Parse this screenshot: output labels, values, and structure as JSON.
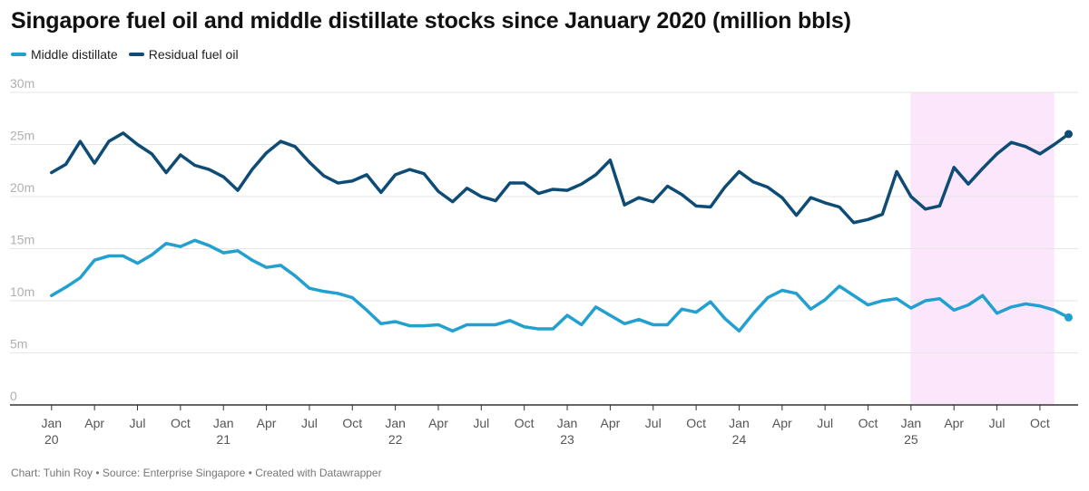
{
  "chart_data": {
    "type": "line",
    "title": "Singapore fuel oil and middle distillate stocks since January 2020 (million bbls)",
    "footer": "Chart: Tuhin Roy • Source: Enterprise Singapore • Created with Datawrapper",
    "ylim": [
      0,
      30
    ],
    "yticks": [
      {
        "value": 0,
        "label": "0"
      },
      {
        "value": 5,
        "label": "5m"
      },
      {
        "value": 10,
        "label": "10m"
      },
      {
        "value": 15,
        "label": "15m"
      },
      {
        "value": 20,
        "label": "20m"
      },
      {
        "value": 25,
        "label": "25m"
      },
      {
        "value": 30,
        "label": "30m"
      }
    ],
    "xticks": [
      {
        "index": 0,
        "label": "Jan",
        "year": "20"
      },
      {
        "index": 3,
        "label": "Apr"
      },
      {
        "index": 6,
        "label": "Jul"
      },
      {
        "index": 9,
        "label": "Oct"
      },
      {
        "index": 12,
        "label": "Jan",
        "year": "21"
      },
      {
        "index": 15,
        "label": "Apr"
      },
      {
        "index": 18,
        "label": "Jul"
      },
      {
        "index": 21,
        "label": "Oct"
      },
      {
        "index": 24,
        "label": "Jan",
        "year": "22"
      },
      {
        "index": 27,
        "label": "Apr"
      },
      {
        "index": 30,
        "label": "Jul"
      },
      {
        "index": 33,
        "label": "Oct"
      },
      {
        "index": 36,
        "label": "Jan",
        "year": "23"
      },
      {
        "index": 39,
        "label": "Apr"
      },
      {
        "index": 42,
        "label": "Jul"
      },
      {
        "index": 45,
        "label": "Oct"
      },
      {
        "index": 48,
        "label": "Jan",
        "year": "24"
      },
      {
        "index": 51,
        "label": "Apr"
      },
      {
        "index": 54,
        "label": "Jul"
      },
      {
        "index": 57,
        "label": "Oct"
      },
      {
        "index": 60,
        "label": "Jan",
        "year": "25"
      },
      {
        "index": 63,
        "label": "Apr"
      },
      {
        "index": 66,
        "label": "Jul"
      },
      {
        "index": 69,
        "label": "Oct"
      }
    ],
    "highlight": {
      "from_index": 60,
      "to_index": 70,
      "color": "#fbe6fb"
    },
    "series": [
      {
        "name": "Middle distillate",
        "color": "#22a0cf",
        "values": [
          10.5,
          11.3,
          12.2,
          13.9,
          14.3,
          14.3,
          13.6,
          14.4,
          15.5,
          15.2,
          15.8,
          15.3,
          14.6,
          14.8,
          13.9,
          13.2,
          13.4,
          12.4,
          11.2,
          10.9,
          10.7,
          10.3,
          9.1,
          7.8,
          8.0,
          7.6,
          7.6,
          7.7,
          7.1,
          7.7,
          7.7,
          7.7,
          8.1,
          7.5,
          7.3,
          7.3,
          8.6,
          7.7,
          9.4,
          8.6,
          7.8,
          8.2,
          7.7,
          7.7,
          9.2,
          8.9,
          9.9,
          8.3,
          7.1,
          8.8,
          10.3,
          11.0,
          10.7,
          9.2,
          10.1,
          11.4,
          10.5,
          9.6,
          10.0,
          10.2,
          9.3,
          10.0,
          10.2,
          9.1,
          9.6,
          10.5,
          8.8,
          9.4,
          9.7,
          9.5,
          9.1,
          8.4
        ]
      },
      {
        "name": "Residual fuel oil",
        "color": "#0f4c75",
        "values": [
          22.3,
          23.1,
          25.3,
          23.2,
          25.3,
          26.1,
          25.0,
          24.1,
          22.3,
          24.0,
          23.0,
          22.6,
          21.9,
          20.6,
          22.6,
          24.2,
          25.3,
          24.8,
          23.3,
          22.0,
          21.3,
          21.5,
          22.1,
          20.4,
          22.1,
          22.6,
          22.2,
          20.5,
          19.5,
          20.8,
          20.0,
          19.6,
          21.3,
          21.3,
          20.3,
          20.7,
          20.6,
          21.2,
          22.1,
          23.5,
          19.2,
          19.9,
          19.5,
          21.0,
          20.2,
          19.1,
          19.0,
          20.9,
          22.4,
          21.4,
          20.9,
          19.9,
          18.2,
          19.9,
          19.4,
          19.0,
          17.5,
          17.8,
          18.3,
          22.4,
          20.0,
          18.8,
          19.1,
          22.8,
          21.2,
          22.7,
          24.1,
          25.2,
          24.8,
          24.1,
          25.0,
          26.0
        ]
      }
    ]
  }
}
